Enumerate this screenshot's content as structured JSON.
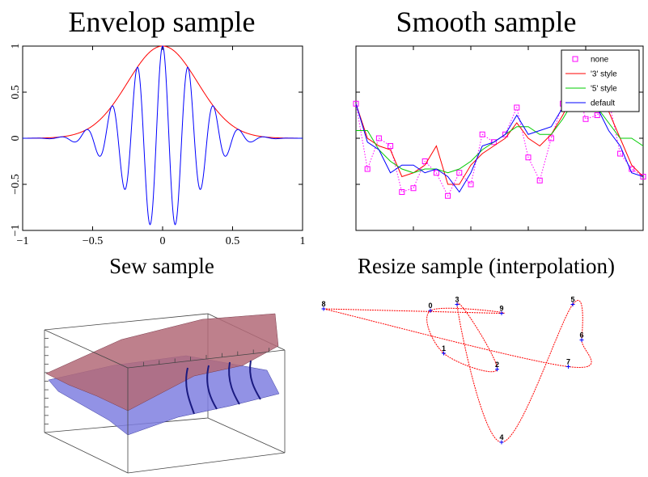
{
  "chart_data": [
    {
      "type": "line",
      "title": "Envelop sample",
      "xlim": [
        -1,
        1
      ],
      "ylim": [
        -1,
        1
      ],
      "x_ticks": [
        "−1",
        "−0.5",
        "0",
        "0.5",
        "1"
      ],
      "y_ticks": [
        "1",
        "0.5",
        "0",
        "−0.5",
        "−1"
      ],
      "x_tick_values": [
        -1,
        -0.5,
        0,
        0.5,
        1
      ],
      "y_tick_values": [
        1,
        0.5,
        0,
        -0.5,
        -1
      ],
      "series": [
        {
          "color": "#ff0000",
          "function": "envelope",
          "sigma": 0.25
        },
        {
          "color": "#0000ff",
          "function": "modulated",
          "sigma": 0.25,
          "frequency": 5.5
        }
      ]
    },
    {
      "type": "line",
      "title": "Smooth sample",
      "xlim": [
        0,
        50
      ],
      "ylim": [
        -1.2,
        1.2
      ],
      "legend_position": "top-right",
      "x": [
        0,
        2,
        4,
        6,
        8,
        10,
        12,
        14,
        16,
        18,
        20,
        22,
        24,
        26,
        28,
        30,
        32,
        34,
        36,
        38,
        40,
        42,
        44,
        46,
        48,
        50
      ],
      "series": [
        {
          "name": "none",
          "color": "#ff00ff",
          "style": "dotted-squares",
          "values": [
            0.45,
            -0.4,
            0.0,
            -0.1,
            -0.7,
            -0.65,
            -0.3,
            -0.45,
            -0.75,
            -0.45,
            -0.6,
            0.05,
            -0.05,
            0.05,
            0.4,
            -0.25,
            -0.55,
            0.0,
            0.45,
            0.8,
            0.25,
            0.3,
            0.5,
            -0.2,
            -0.4,
            -0.5
          ]
        },
        {
          "name": "'3' style",
          "color": "#ff0000",
          "style": "line",
          "values": [
            0.45,
            0.0,
            -0.1,
            -0.15,
            -0.5,
            -0.45,
            -0.35,
            -0.1,
            -0.6,
            -0.6,
            -0.35,
            -0.2,
            -0.1,
            0.0,
            0.2,
            0.0,
            -0.1,
            0.05,
            0.3,
            0.6,
            0.5,
            0.4,
            0.35,
            0.0,
            -0.35,
            -0.5
          ]
        },
        {
          "name": "'5' style",
          "color": "#00cc00",
          "style": "line",
          "values": [
            0.1,
            0.1,
            -0.15,
            -0.3,
            -0.4,
            -0.45,
            -0.4,
            -0.4,
            -0.45,
            -0.4,
            -0.3,
            -0.15,
            -0.05,
            0.05,
            0.15,
            0.15,
            0.05,
            0.05,
            0.25,
            0.5,
            0.5,
            0.4,
            0.2,
            0.0,
            0.0,
            -0.1
          ]
        },
        {
          "name": "default",
          "color": "#0000ff",
          "style": "line",
          "values": [
            0.45,
            -0.05,
            -0.15,
            -0.45,
            -0.35,
            -0.35,
            -0.45,
            -0.4,
            -0.5,
            -0.7,
            -0.45,
            -0.1,
            -0.05,
            0.05,
            0.3,
            0.05,
            0.1,
            0.15,
            0.4,
            0.55,
            0.35,
            0.4,
            0.1,
            -0.1,
            -0.45,
            -0.5
          ]
        }
      ]
    },
    {
      "type": "surface",
      "title": "Sew sample",
      "surfaces": [
        {
          "color": "#c07a7a",
          "opacity": 0.8
        },
        {
          "color": "#7f7fe0",
          "opacity": 0.8
        }
      ]
    },
    {
      "type": "line",
      "title": "Resize sample (interpolation)",
      "point_labels": [
        "0",
        "1",
        "2",
        "3",
        "4",
        "5",
        "6",
        "7",
        "8",
        "9"
      ],
      "points": [
        [
          -0.3,
          0.78
        ],
        [
          -0.15,
          0.3
        ],
        [
          0.45,
          0.12
        ],
        [
          0.0,
          0.85
        ],
        [
          0.5,
          -0.7
        ],
        [
          1.3,
          0.85
        ],
        [
          1.4,
          0.45
        ],
        [
          1.25,
          0.15
        ],
        [
          -1.5,
          0.8
        ],
        [
          0.5,
          0.75
        ]
      ],
      "color": "#ff0000"
    }
  ]
}
